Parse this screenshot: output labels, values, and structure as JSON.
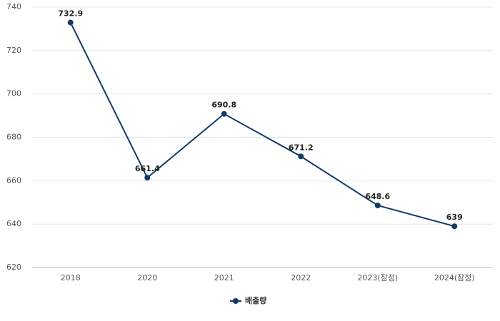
{
  "chart_data": {
    "type": "line",
    "categories": [
      "2018",
      "2020",
      "2021",
      "2022",
      "2023(잠정)",
      "2024(잠정)"
    ],
    "series": [
      {
        "name": "배출량",
        "color": "#143a6b",
        "values": [
          732.9,
          661.4,
          690.8,
          671.2,
          648.6,
          639
        ]
      }
    ],
    "ylim": [
      620,
      740
    ],
    "yticks": [
      620,
      640,
      660,
      680,
      700,
      720,
      740
    ],
    "grid": true,
    "legend": "bottom"
  }
}
